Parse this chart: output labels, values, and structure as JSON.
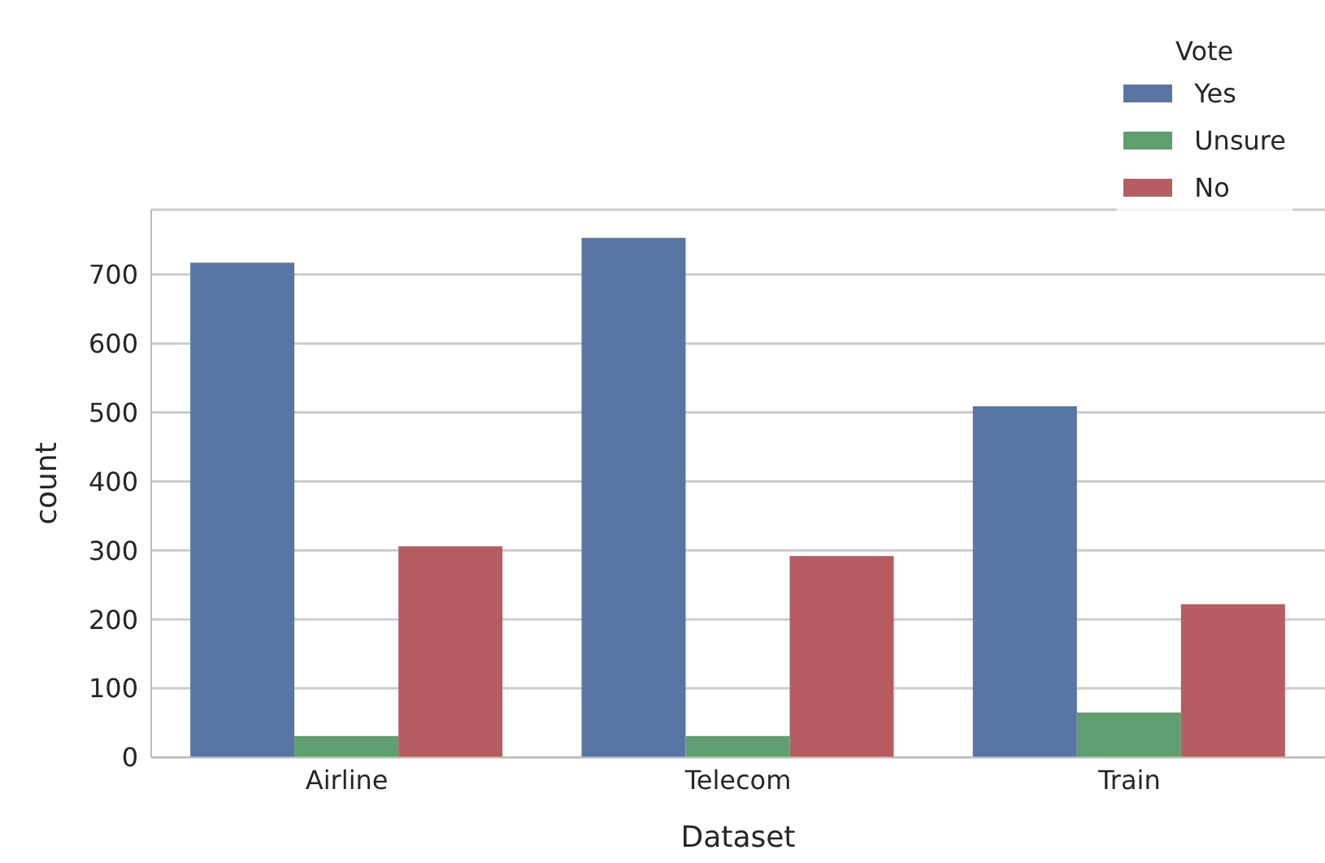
{
  "chart_data": {
    "type": "bar",
    "xlabel": "Dataset",
    "ylabel": "count",
    "legend_title": "Vote",
    "categories": [
      "Airline",
      "Telecom",
      "Train"
    ],
    "series": [
      {
        "name": "Yes",
        "color": "#5875a4",
        "values": [
          717,
          753,
          509
        ]
      },
      {
        "name": "Unsure",
        "color": "#5f9e6e",
        "values": [
          31,
          31,
          65
        ]
      },
      {
        "name": "No",
        "color": "#b55d60",
        "values": [
          306,
          292,
          222
        ]
      }
    ],
    "ylim": [
      0,
      794
    ],
    "yticks": [
      0,
      100,
      200,
      300,
      400,
      500,
      600,
      700
    ],
    "grid": "y",
    "legend": "top right"
  }
}
